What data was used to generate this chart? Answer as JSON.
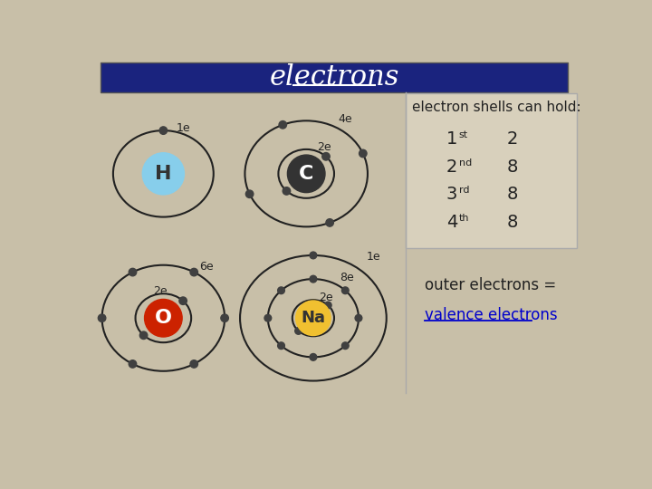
{
  "title": "electrons",
  "title_color": "#ffffff",
  "title_bg_color": "#1a237e",
  "bg_color": "#c8bfa8",
  "table_header": "electron shells can hold:",
  "table_rows": [
    {
      "shell": "1",
      "sup": "st",
      "value": "2"
    },
    {
      "shell": "2",
      "sup": "nd",
      "value": "8"
    },
    {
      "shell": "3",
      "sup": "rd",
      "value": "8"
    },
    {
      "shell": "4",
      "sup": "th",
      "value": "8"
    }
  ],
  "outer_electrons_text": "outer electrons =",
  "valence_text": "valence electrons",
  "valence_color": "#0000cc",
  "atom_H": {
    "label": "H",
    "color": "#87ceeb",
    "text_color": "#333333"
  },
  "atom_C": {
    "label": "C",
    "color": "#333333",
    "text_color": "#ffffff"
  },
  "atom_O": {
    "label": "O",
    "color": "#cc2200",
    "text_color": "#ffffff"
  },
  "atom_Na": {
    "label": "Na",
    "color": "#f0c030",
    "text_color": "#333333"
  },
  "electron_color": "#404040",
  "orbit_color": "#222222"
}
